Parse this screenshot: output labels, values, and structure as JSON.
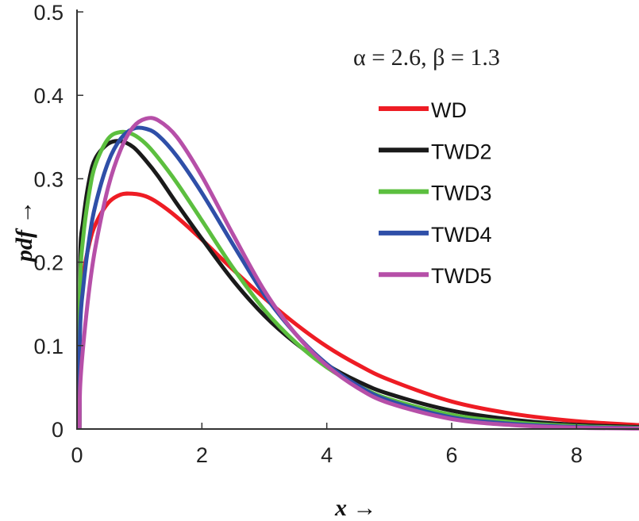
{
  "chart_data": {
    "type": "line",
    "title": "",
    "xlabel": "x →",
    "ylabel": "pdf →",
    "xlim": [
      0,
      9
    ],
    "ylim": [
      0,
      0.5
    ],
    "xticks": [
      "0",
      "2",
      "4",
      "6",
      "8"
    ],
    "yticks": [
      "0",
      "0.1",
      "0.2",
      "0.3",
      "0.4",
      "0.5"
    ],
    "grid": false,
    "legend_position": "top-right",
    "annotation": "α = 2.6, β = 1.3",
    "x": [
      0,
      0.05,
      0.1,
      0.2,
      0.3,
      0.5,
      0.7,
      0.9,
      1.1,
      1.3,
      1.6,
      2,
      2.5,
      3,
      3.5,
      4,
      4.5,
      5,
      6,
      7,
      8,
      9
    ],
    "series": [
      {
        "name": "WD",
        "color": "#ee1c24",
        "values": [
          0,
          0.152,
          0.185,
          0.223,
          0.246,
          0.271,
          0.281,
          0.282,
          0.279,
          0.271,
          0.254,
          0.227,
          0.191,
          0.157,
          0.126,
          0.099,
          0.077,
          0.059,
          0.033,
          0.018,
          0.0094,
          0.0047
        ]
      },
      {
        "name": "TWD2",
        "color": "#1a1a1a",
        "values": [
          0,
          0.2,
          0.25,
          0.3,
          0.325,
          0.342,
          0.345,
          0.338,
          0.322,
          0.303,
          0.27,
          0.228,
          0.178,
          0.136,
          0.103,
          0.077,
          0.057,
          0.042,
          0.022,
          0.011,
          0.005,
          0.0025
        ]
      },
      {
        "name": "TWD3",
        "color": "#5cbf3f",
        "values": [
          0,
          0.17,
          0.23,
          0.285,
          0.318,
          0.348,
          0.356,
          0.353,
          0.342,
          0.325,
          0.295,
          0.25,
          0.193,
          0.143,
          0.104,
          0.074,
          0.052,
          0.036,
          0.017,
          0.008,
          0.0035,
          0.0015
        ]
      },
      {
        "name": "TWD4",
        "color": "#2f4fa8",
        "values": [
          0,
          0.12,
          0.17,
          0.23,
          0.27,
          0.32,
          0.348,
          0.36,
          0.36,
          0.352,
          0.327,
          0.283,
          0.221,
          0.161,
          0.114,
          0.078,
          0.052,
          0.034,
          0.014,
          0.006,
          0.0024,
          0.001
        ]
      },
      {
        "name": "TWD5",
        "color": "#b64fa8",
        "values": [
          0,
          0.05,
          0.1,
          0.17,
          0.22,
          0.29,
          0.335,
          0.362,
          0.372,
          0.37,
          0.35,
          0.303,
          0.233,
          0.166,
          0.114,
          0.076,
          0.049,
          0.031,
          0.012,
          0.0045,
          0.0016,
          0.0006
        ]
      }
    ]
  }
}
